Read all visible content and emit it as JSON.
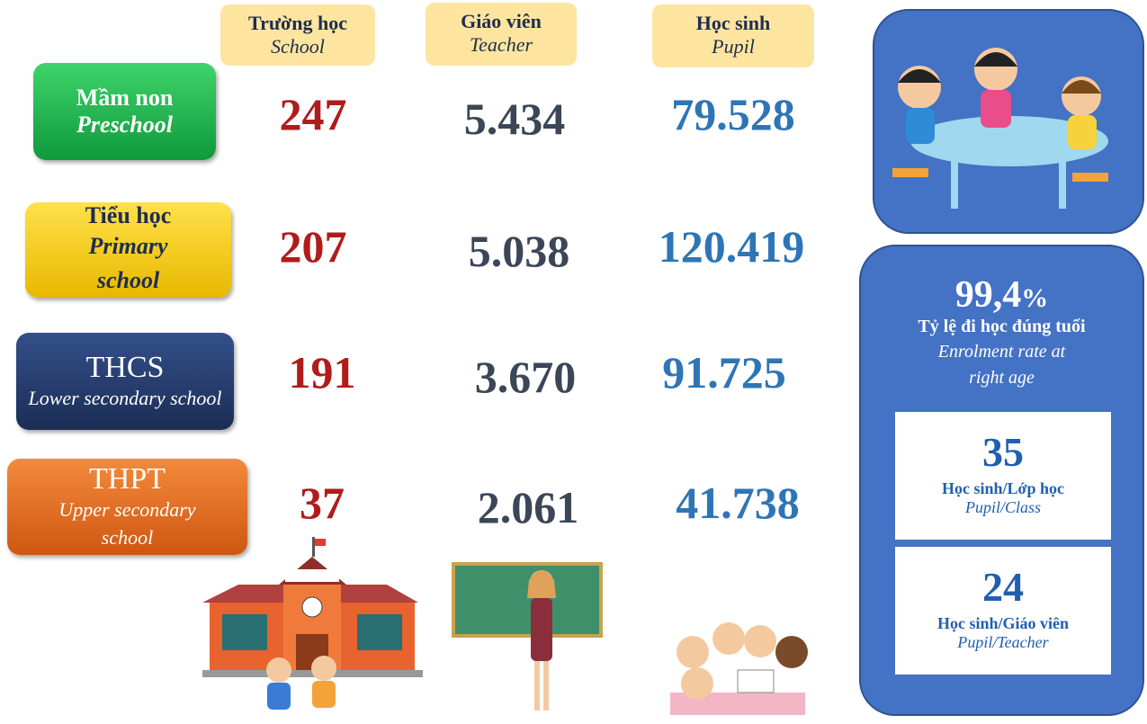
{
  "columns": [
    {
      "title": "Trường học",
      "subtitle": "School"
    },
    {
      "title": "Giáo viên",
      "subtitle": "Teacher"
    },
    {
      "title": "Học sinh",
      "subtitle": "Pupil"
    }
  ],
  "rows": [
    {
      "label": "Mầm non",
      "sublabel": "Preschool",
      "values": [
        "247",
        "5.434",
        "79.528"
      ]
    },
    {
      "label": "Tiểu học",
      "sublabel": "Primary school",
      "values": [
        "207",
        "5.038",
        "120.419"
      ]
    },
    {
      "label": "THCS",
      "sublabel": "Lower secondary school",
      "values": [
        "191",
        "3.670",
        "91.725"
      ]
    },
    {
      "label": "THPT",
      "sublabel": "Upper secondary school",
      "values": [
        "37",
        "2.061",
        "41.738"
      ]
    }
  ],
  "rate": {
    "value": "99,4",
    "unit": "%",
    "label": "Tỷ lệ đi học đúng tuổi",
    "sublabel": "Enrolment rate at right age"
  },
  "ratios": [
    {
      "value": "35",
      "label": "Học sinh/Lớp học",
      "sublabel": "Pupil/Class"
    },
    {
      "value": "24",
      "label": "Học sinh/Giáo viên",
      "sublabel": "Pupil/Teacher"
    }
  ]
}
